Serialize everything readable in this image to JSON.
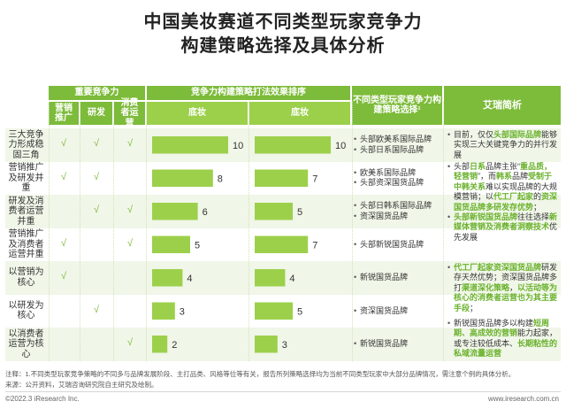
{
  "title": {
    "line1": "中国美妆赛道不同类型玩家竞争力",
    "line2": "构建策略选择及具体分析"
  },
  "headers": {
    "group_competency": "重要竞争力",
    "group_strategy": "竞争力构建策略打法效果排序",
    "group_players": "不同类型玩家竞争力构建策略选择¹",
    "group_analysis": "艾瑞简析",
    "sub_marketing": "营销推广",
    "sub_rd": "研发",
    "sub_consumer": "消费者运营",
    "sub_base1": "底妆",
    "sub_base2": "底妆"
  },
  "checkmark": "√",
  "rows": [
    {
      "label": "三大竞争力形成稳固三角",
      "marketing": true,
      "rd": true,
      "consumer": true
    },
    {
      "label": "营销推广及研发并重",
      "marketing": true,
      "rd": true,
      "consumer": false
    },
    {
      "label": "研发及消费者运营并重",
      "marketing": false,
      "rd": true,
      "consumer": true
    },
    {
      "label": "营销推广及消费者运营并重",
      "marketing": true,
      "rd": false,
      "consumer": true
    },
    {
      "label": "以营销为核心",
      "marketing": true,
      "rd": false,
      "consumer": false
    },
    {
      "label": "以研发为核心",
      "marketing": false,
      "rd": true,
      "consumer": false
    },
    {
      "label": "以消费者运营为核心",
      "marketing": false,
      "rd": false,
      "consumer": true
    }
  ],
  "chart_data": [
    {
      "type": "bar",
      "orientation": "horizontal",
      "title": "底妆",
      "categories": [
        "三大竞争力形成稳固三角",
        "营销推广及研发并重",
        "研发及消费者运营并重",
        "营销推广及消费者运营并重",
        "以营销为核心",
        "以研发为核心",
        "以消费者运营为核心"
      ],
      "values": [
        10,
        8,
        6,
        5,
        4,
        3,
        2
      ],
      "xlim": [
        0,
        10
      ],
      "color": "#9cd04b"
    },
    {
      "type": "bar",
      "orientation": "horizontal",
      "title": "底妆",
      "categories": [
        "三大竞争力形成稳固三角",
        "营销推广及研发并重",
        "研发及消费者运营并重",
        "营销推广及消费者运营并重",
        "以营销为核心",
        "以研发为核心",
        "以消费者运营为核心"
      ],
      "values": [
        10,
        7,
        5,
        7,
        4,
        5,
        3
      ],
      "xlim": [
        0,
        10
      ],
      "color": "#9cd04b"
    }
  ],
  "players": [
    [
      "头部欧美系国际品牌",
      "头部日系国际品牌"
    ],
    [
      "欧美系国际品牌",
      "头部资深国货品牌"
    ],
    [
      "头部日韩系国际品牌",
      "资深国货品牌"
    ],
    [
      "头部新锐国货品牌"
    ],
    [
      "新锐国货品牌"
    ],
    [
      "资深国货品牌"
    ],
    [
      "新锐国货品牌"
    ]
  ],
  "analysis": [
    [
      {
        "t": "目前，仅仅"
      },
      {
        "t": "头部国际品牌",
        "h": true
      },
      {
        "t": "能够实现三大关键竞争力的并行发展"
      }
    ],
    [
      {
        "t": "头部"
      },
      {
        "t": "日系",
        "h": true
      },
      {
        "t": "品牌主张“"
      },
      {
        "t": "重品质，轻营销",
        "h": true
      },
      {
        "t": "”，而"
      },
      {
        "t": "韩系",
        "h": true
      },
      {
        "t": "品牌"
      },
      {
        "t": "受制于中韩关系",
        "h": true
      },
      {
        "t": "难以实现品牌的大规模营销；以"
      },
      {
        "t": "代工厂起家",
        "h": true
      },
      {
        "t": "的"
      },
      {
        "t": "资深国货品牌多研发存优势",
        "h": true
      },
      {
        "t": "；"
      }
    ],
    [
      {
        "t": "头部新锐国货品牌",
        "h": true
      },
      {
        "t": "往往选择"
      },
      {
        "t": "新媒体营销及消费者洞察技术",
        "h": true
      },
      {
        "t": "优先发展"
      }
    ],
    [
      {
        "t": "代工厂起家资深国货品牌",
        "h": true
      },
      {
        "t": "研发存天然优势；资深国货品牌多打"
      },
      {
        "t": "渠道深化策略",
        "h": true
      },
      {
        "t": "，"
      },
      {
        "t": "以活动等为核心的消费者运营也为其主要手段",
        "h": true
      },
      {
        "t": "；"
      }
    ],
    [
      {
        "t": "新锐国货品牌多以构建"
      },
      {
        "t": "短周期、高成效的营销",
        "h": true
      },
      {
        "t": "能力起家，或专注较低成本、"
      },
      {
        "t": "长期粘性的私域流量运营",
        "h": true
      }
    ]
  ],
  "footnote": "注释：1.不同类型玩家竞争策略的不同多与品牌发展阶段、主打品类、风格等位等有关，报告所列策略选择均为当前不同类型玩家中大部分品牌情况，需注意个例的具体分析。",
  "source": "来源：公开资料，艾瑞咨询研究院自主研究及绘制。",
  "copyright": "©2022.3 iResearch Inc.",
  "website": "www.iresearch.com.cn"
}
